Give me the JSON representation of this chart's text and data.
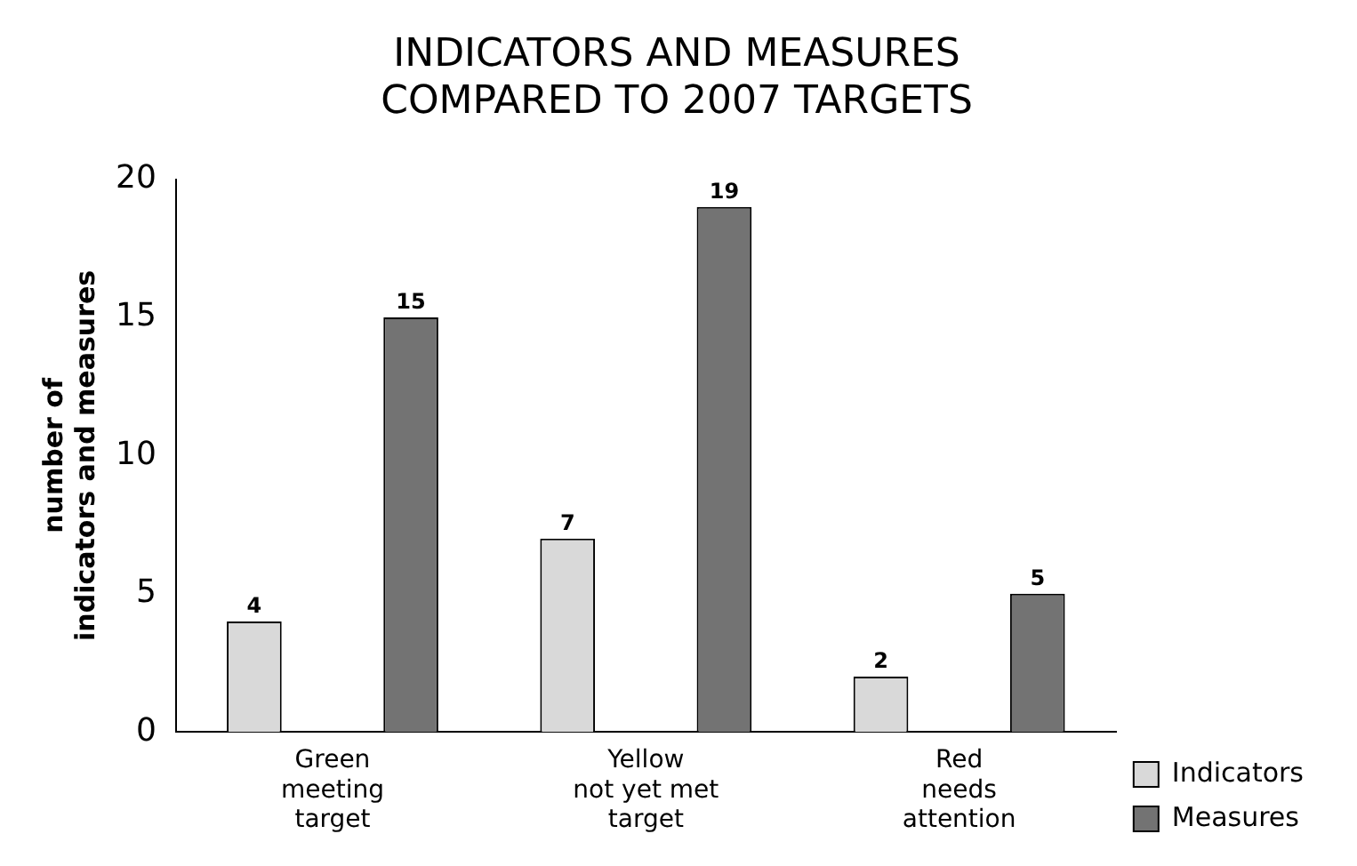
{
  "chart_data": {
    "type": "bar",
    "title": "INDICATORS AND MEASURES\nCOMPARED TO 2007 TARGETS",
    "ylabel": "number of\nindicators and measures",
    "categories": [
      "Green\nmeeting\ntarget",
      "Yellow\nnot yet met\ntarget",
      "Red\nneeds\nattention"
    ],
    "series": [
      {
        "name": "Indicators",
        "color": "#d9d9d9",
        "values": [
          4,
          7,
          2
        ]
      },
      {
        "name": "Measures",
        "color": "#737373",
        "values": [
          15,
          19,
          5
        ]
      }
    ],
    "ylim": [
      0,
      20
    ],
    "yticks": [
      0,
      5,
      10,
      15,
      20
    ],
    "grid": false,
    "legend": "bottom right",
    "data_labels": true
  }
}
